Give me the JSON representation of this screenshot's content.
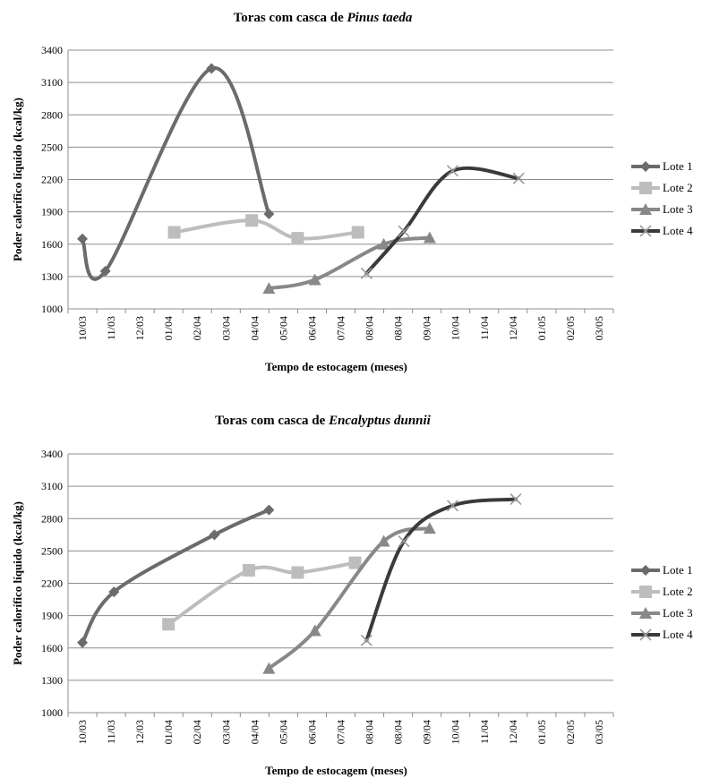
{
  "chart_data": [
    {
      "type": "line",
      "title_prefix": "Toras com casca de ",
      "title_species": "Pinus taeda",
      "xlabel": "Tempo de estocagem (meses)",
      "ylabel": "Poder calorífico líquido (kcal/kg)",
      "categories": [
        "10/03",
        "11/03",
        "12/03",
        "01/04",
        "02/04",
        "03/04",
        "04/04",
        "05/04",
        "06/04",
        "07/04",
        "08/04",
        "08/04",
        "09/04",
        "10/04",
        "11/04",
        "12/04",
        "01/05",
        "02/05",
        "03/05"
      ],
      "y_ticks": [
        1000,
        1300,
        1600,
        1900,
        2200,
        2500,
        2800,
        3100,
        3400
      ],
      "ylim": [
        1000,
        3400
      ],
      "grid": true,
      "legend_position": "right",
      "series": [
        {
          "name": "Lote 1",
          "marker": "diamond",
          "color": "#6b6b6b",
          "points": [
            [
              0,
              1650
            ],
            [
              0.8,
              1350
            ],
            [
              4.5,
              3230
            ],
            [
              6.5,
              1880
            ]
          ]
        },
        {
          "name": "Lote 2",
          "marker": "square",
          "color": "#bdbdbd",
          "points": [
            [
              3.2,
              1710
            ],
            [
              5.9,
              1820
            ],
            [
              7.5,
              1655
            ],
            [
              9.6,
              1710
            ]
          ]
        },
        {
          "name": "Lote 3",
          "marker": "triangle",
          "color": "#888888",
          "points": [
            [
              6.5,
              1190
            ],
            [
              8.1,
              1270
            ],
            [
              10.5,
              1600
            ],
            [
              12.1,
              1660
            ]
          ]
        },
        {
          "name": "Lote 4",
          "marker": "x",
          "color": "#3a3a3a",
          "points": [
            [
              9.9,
              1330
            ],
            [
              11.2,
              1720
            ],
            [
              12.9,
              2280
            ],
            [
              15.2,
              2210
            ]
          ]
        }
      ]
    },
    {
      "type": "line",
      "title_prefix": "Toras com casca de ",
      "title_species": "Encalyptus dunnii",
      "xlabel": "Tempo de estocagem (meses)",
      "ylabel": "Poder calorífico líquido (kcal/kg)",
      "categories": [
        "10/03",
        "11/03",
        "12/03",
        "01/04",
        "02/04",
        "03/04",
        "04/04",
        "05/04",
        "06/04",
        "07/04",
        "08/04",
        "08/04",
        "09/04",
        "10/04",
        "11/04",
        "12/04",
        "01/05",
        "02/05",
        "03/05"
      ],
      "y_ticks": [
        1000,
        1300,
        1600,
        1900,
        2200,
        2500,
        2800,
        3100,
        3400
      ],
      "ylim": [
        1000,
        3400
      ],
      "grid": true,
      "legend_position": "right",
      "series": [
        {
          "name": "Lote 1",
          "marker": "diamond",
          "color": "#6b6b6b",
          "points": [
            [
              0,
              1650
            ],
            [
              1.1,
              2120
            ],
            [
              4.6,
              2650
            ],
            [
              6.5,
              2880
            ]
          ]
        },
        {
          "name": "Lote 2",
          "marker": "square",
          "color": "#bdbdbd",
          "points": [
            [
              3.0,
              1820
            ],
            [
              5.8,
              2320
            ],
            [
              7.5,
              2300
            ],
            [
              9.5,
              2390
            ]
          ]
        },
        {
          "name": "Lote 3",
          "marker": "triangle",
          "color": "#888888",
          "points": [
            [
              6.5,
              1410
            ],
            [
              8.1,
              1760
            ],
            [
              10.5,
              2590
            ],
            [
              12.1,
              2710
            ]
          ]
        },
        {
          "name": "Lote 4",
          "marker": "x",
          "color": "#3a3a3a",
          "points": [
            [
              9.9,
              1670
            ],
            [
              11.2,
              2590
            ],
            [
              12.9,
              2920
            ],
            [
              15.1,
              2980
            ]
          ]
        }
      ]
    }
  ]
}
